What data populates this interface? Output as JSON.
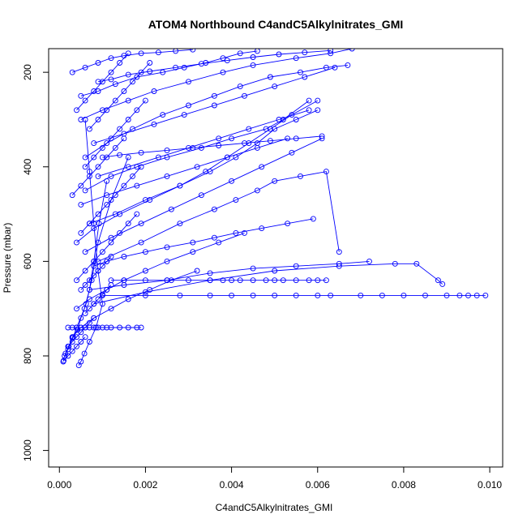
{
  "chart_data": {
    "type": "line",
    "title": "ATOM4 Northbound C4andC5Alkylnitrates_GMI",
    "xlabel": "C4andC5Alkylnitrates_GMI",
    "ylabel": "Pressure (mbar)",
    "xlim": [
      -0.00025,
      0.0103
    ],
    "ylim": [
      1035,
      150
    ],
    "y_reversed": true,
    "x_ticks": [
      0.0,
      0.002,
      0.004,
      0.006,
      0.008,
      0.01
    ],
    "x_tick_labels": [
      "0.000",
      "0.002",
      "0.004",
      "0.006",
      "0.008",
      "0.010"
    ],
    "y_ticks": [
      200,
      400,
      600,
      800,
      1000
    ],
    "y_tick_labels": [
      "200",
      "400",
      "600",
      "800",
      "1000"
    ],
    "grid": false,
    "series_color": "#0000ff",
    "marker": "open-circle",
    "series": [
      {
        "x": [
          9e-05,
          0.00012,
          0.0002,
          0.00032,
          0.0004,
          0.00058,
          0.0007,
          0.0008,
          0.00092,
          0.0011
        ],
        "y": [
          812,
          800,
          786,
          760,
          740,
          700,
          660,
          600,
          520,
          430
        ]
      },
      {
        "x": [
          0.00014,
          0.00022,
          0.0003,
          0.00042,
          0.0005,
          0.00062,
          0.00075,
          0.0009,
          0.0012,
          0.0016
        ],
        "y": [
          795,
          780,
          762,
          745,
          720,
          690,
          640,
          560,
          470,
          380
        ]
      },
      {
        "x": [
          0.00045,
          0.0005,
          0.00058,
          0.0007,
          0.00085,
          0.001,
          0.0009,
          0.0008,
          0.0007,
          0.0006
        ],
        "y": [
          820,
          812,
          795,
          770,
          740,
          690,
          620,
          520,
          410,
          300
        ]
      },
      {
        "x": [
          0.0002,
          0.0003,
          0.0004,
          0.0005,
          0.0006,
          0.0007,
          0.0008,
          0.0009,
          0.001,
          0.0011,
          0.0012,
          0.0014,
          0.0016,
          0.0018,
          0.0019
        ],
        "y": [
          740,
          740,
          740,
          740,
          740,
          740,
          740,
          740,
          740,
          740,
          740,
          740,
          740,
          740,
          740
        ]
      },
      {
        "x": [
          0.0012,
          0.0015,
          0.002,
          0.0025,
          0.003,
          0.0035,
          0.0038,
          0.004,
          0.0042,
          0.0045,
          0.0048,
          0.005,
          0.0052,
          0.0055,
          0.0058,
          0.006,
          0.0062
        ],
        "y": [
          640,
          640,
          640,
          640,
          640,
          640,
          640,
          640,
          640,
          640,
          640,
          640,
          640,
          640,
          640,
          640,
          640
        ]
      },
      {
        "x": [
          0.001,
          0.002,
          0.0028,
          0.0035,
          0.004,
          0.0045,
          0.005,
          0.0055,
          0.006,
          0.0063,
          0.007,
          0.0075,
          0.008,
          0.0085,
          0.009,
          0.0093,
          0.0095,
          0.0097,
          0.0099
        ],
        "y": [
          672,
          672,
          672,
          672,
          672,
          672,
          672,
          672,
          672,
          672,
          672,
          672,
          672,
          672,
          672,
          672,
          672,
          672,
          672
        ]
      },
      {
        "x": [
          0.0007,
          0.0015,
          0.0025,
          0.0035,
          0.0045,
          0.0055,
          0.0065,
          0.0072
        ],
        "y": [
          660,
          650,
          640,
          625,
          615,
          610,
          605,
          600
        ]
      },
      {
        "x": [
          0.0008,
          0.002,
          0.0035,
          0.005,
          0.0065,
          0.0078,
          0.0083,
          0.0088,
          0.0089
        ],
        "y": [
          690,
          665,
          640,
          620,
          610,
          605,
          605,
          640,
          648
        ]
      },
      {
        "x": [
          0.0009,
          0.0019,
          0.0028,
          0.0036,
          0.0041,
          0.0046,
          0.005,
          0.0056,
          0.0062,
          0.0065
        ],
        "y": [
          600,
          560,
          520,
          490,
          470,
          450,
          430,
          420,
          410,
          580
        ]
      },
      {
        "x": [
          0.0006,
          0.0012,
          0.0018,
          0.0025,
          0.0033,
          0.004,
          0.0048,
          0.0052,
          0.0058
        ],
        "y": [
          450,
          420,
          400,
          380,
          360,
          340,
          320,
          300,
          260
        ]
      },
      {
        "x": [
          0.0005,
          0.001,
          0.0016,
          0.0022,
          0.003,
          0.0038,
          0.0045,
          0.0055,
          0.0063,
          0.0068
        ],
        "y": [
          300,
          280,
          260,
          240,
          220,
          200,
          185,
          170,
          160,
          150
        ]
      },
      {
        "x": [
          0.0006,
          0.0011,
          0.0017,
          0.0024,
          0.003,
          0.0036,
          0.0042,
          0.0049,
          0.0056,
          0.0062,
          0.0067
        ],
        "y": [
          380,
          350,
          320,
          290,
          270,
          250,
          230,
          210,
          200,
          190,
          185
        ]
      },
      {
        "x": [
          0.0007,
          0.0013,
          0.002,
          0.0028,
          0.0035,
          0.0041,
          0.0046,
          0.005,
          0.0055,
          0.006
        ],
        "y": [
          520,
          500,
          470,
          440,
          410,
          380,
          350,
          320,
          300,
          280
        ]
      },
      {
        "x": [
          0.0004,
          0.0008,
          0.0014,
          0.0021,
          0.0028,
          0.0034,
          0.0039,
          0.0044,
          0.0049,
          0.0054,
          0.006
        ],
        "y": [
          560,
          530,
          500,
          470,
          440,
          410,
          380,
          350,
          320,
          290,
          260
        ]
      },
      {
        "x": [
          0.0005,
          0.0009,
          0.0013,
          0.0018,
          0.0024,
          0.0029,
          0.0034,
          0.0038,
          0.0042,
          0.0046
        ],
        "y": [
          250,
          240,
          225,
          210,
          200,
          190,
          180,
          170,
          160,
          155
        ]
      },
      {
        "x": [
          0.0003,
          0.0006,
          0.0009,
          0.0012,
          0.0015,
          0.0019,
          0.0023,
          0.0027,
          0.0031
        ],
        "y": [
          200,
          190,
          180,
          170,
          165,
          160,
          158,
          155,
          152
        ]
      },
      {
        "x": [
          0.0008,
          0.0015,
          0.0022,
          0.0029,
          0.0036,
          0.0043,
          0.005,
          0.0057,
          0.0064
        ],
        "y": [
          350,
          330,
          310,
          290,
          270,
          250,
          230,
          210,
          190
        ]
      },
      {
        "x": [
          0.0009,
          0.0016,
          0.0023,
          0.003,
          0.0037,
          0.0044,
          0.0051,
          0.0058
        ],
        "y": [
          420,
          400,
          380,
          360,
          340,
          320,
          300,
          280
        ]
      },
      {
        "x": [
          0.0006,
          0.0012,
          0.0019,
          0.0026,
          0.0033,
          0.004,
          0.0047,
          0.0054,
          0.0061
        ],
        "y": [
          580,
          550,
          520,
          490,
          460,
          430,
          400,
          370,
          340
        ]
      },
      {
        "x": [
          0.0005,
          0.0011,
          0.0018,
          0.0025,
          0.0032,
          0.0039,
          0.0046,
          0.0053
        ],
        "y": [
          480,
          460,
          440,
          420,
          400,
          380,
          360,
          340
        ]
      },
      {
        "x": [
          0.0004,
          0.0007,
          0.0011,
          0.0015,
          0.002,
          0.0025,
          0.0031,
          0.0037,
          0.0043
        ],
        "y": [
          700,
          680,
          660,
          640,
          620,
          600,
          580,
          560,
          540
        ]
      },
      {
        "x": [
          0.0003,
          0.0005,
          0.0008,
          0.0012,
          0.0016,
          0.0021,
          0.0026,
          0.0032
        ],
        "y": [
          760,
          740,
          720,
          700,
          680,
          660,
          640,
          620
        ]
      },
      {
        "x": [
          0.0004,
          0.0006,
          0.0008,
          0.001,
          0.0012,
          0.0014,
          0.0016,
          0.0018
        ],
        "y": [
          640,
          620,
          600,
          580,
          560,
          540,
          520,
          500
        ]
      },
      {
        "x": [
          0.0005,
          0.0007,
          0.0009,
          0.0011,
          0.0013,
          0.0015,
          0.0017,
          0.0019
        ],
        "y": [
          540,
          520,
          500,
          480,
          460,
          440,
          420,
          400
        ]
      },
      {
        "x": [
          0.0006,
          0.0008,
          0.001,
          0.0012,
          0.0014,
          0.0016,
          0.0018,
          0.002
        ],
        "y": [
          400,
          380,
          360,
          340,
          320,
          300,
          280,
          260
        ]
      },
      {
        "x": [
          0.0007,
          0.0009,
          0.0011,
          0.0013,
          0.0015,
          0.0017,
          0.0019,
          0.0021
        ],
        "y": [
          320,
          300,
          280,
          260,
          240,
          220,
          200,
          180
        ]
      },
      {
        "x": [
          0.0004,
          0.0006,
          0.0008,
          0.001,
          0.0012,
          0.0014,
          0.0016
        ],
        "y": [
          280,
          260,
          240,
          220,
          200,
          180,
          160
        ]
      },
      {
        "x": [
          0.0003,
          0.0005,
          0.0007,
          0.0009,
          0.0011,
          0.0013,
          0.0015
        ],
        "y": [
          460,
          440,
          420,
          400,
          380,
          360,
          340
        ]
      },
      {
        "x": [
          0.0005,
          0.0006,
          0.0007,
          0.0008,
          0.0009,
          0.001,
          0.0011,
          0.0012
        ],
        "y": [
          660,
          650,
          640,
          630,
          620,
          610,
          600,
          590
        ]
      },
      {
        "x": [
          0.0006,
          0.0007,
          0.0008,
          0.0009,
          0.001,
          0.0011,
          0.0012
        ],
        "y": [
          710,
          700,
          690,
          680,
          670,
          660,
          650
        ]
      },
      {
        "x": [
          0.0002,
          0.0003,
          0.0004,
          0.0005,
          0.0006,
          0.0007,
          0.0008
        ],
        "y": [
          780,
          770,
          760,
          750,
          740,
          730,
          720
        ]
      },
      {
        "x": [
          0.0001,
          0.0002,
          0.0003,
          0.0004,
          0.0005,
          0.0006
        ],
        "y": [
          810,
          800,
          790,
          780,
          770,
          760
        ]
      },
      {
        "x": [
          0.0009,
          0.0012,
          0.0016,
          0.0021,
          0.0027,
          0.0033,
          0.0039,
          0.0045,
          0.0051,
          0.0057,
          0.0063
        ],
        "y": [
          220,
          215,
          205,
          198,
          190,
          182,
          175,
          168,
          162,
          158,
          154
        ]
      },
      {
        "x": [
          0.001,
          0.0014,
          0.0019,
          0.0025,
          0.0031,
          0.0037,
          0.0043,
          0.0049,
          0.0055,
          0.0061
        ],
        "y": [
          380,
          375,
          370,
          365,
          360,
          355,
          350,
          345,
          340,
          335
        ]
      },
      {
        "x": [
          0.0008,
          0.0011,
          0.0015,
          0.002,
          0.0025,
          0.0031,
          0.0036,
          0.0041,
          0.0047,
          0.0053,
          0.0059
        ],
        "y": [
          610,
          600,
          590,
          580,
          570,
          560,
          550,
          540,
          530,
          520,
          510
        ]
      }
    ]
  }
}
